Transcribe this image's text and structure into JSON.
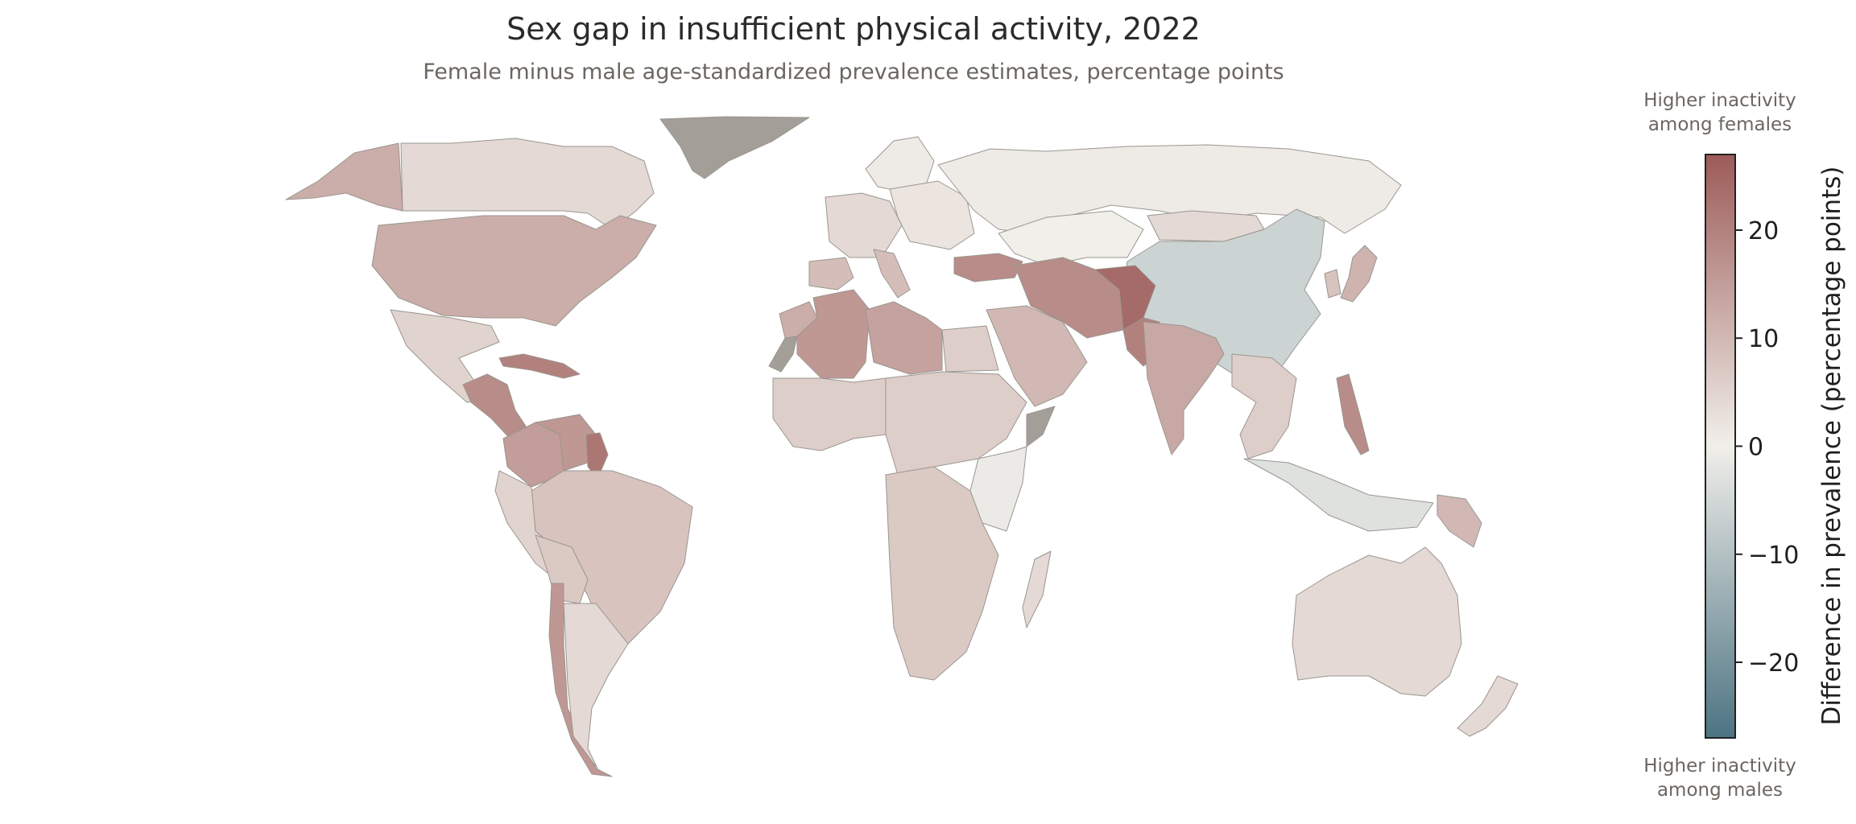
{
  "title": "Sex gap in insufficient physical activity, 2022",
  "subtitle": "Female minus male age-standardized prevalence estimates, percentage points",
  "colorbar": {
    "label": "Difference in prevalence (percentage points)",
    "min": -27,
    "max": 27,
    "ticks": [
      20,
      10,
      0,
      -10,
      -20
    ],
    "tick_labels": [
      "20",
      "10",
      "0",
      "−10",
      "−20"
    ],
    "top_caption": [
      "Higher inactivity",
      "among females"
    ],
    "bottom_caption": [
      "Higher inactivity",
      "among males"
    ],
    "colors": {
      "high": "#9c5b58",
      "zero": "#f1efea",
      "low": "#4c7382",
      "no_data": "#a39f98"
    }
  },
  "map_data": {
    "regions": [
      {
        "name": "Alaska (USA)",
        "value": 12
      },
      {
        "name": "Canada",
        "value": 4
      },
      {
        "name": "Greenland",
        "value": null
      },
      {
        "name": "USA",
        "value": 12
      },
      {
        "name": "Mexico",
        "value": 5
      },
      {
        "name": "Central America",
        "value": 18
      },
      {
        "name": "Caribbean",
        "value": 20
      },
      {
        "name": "Colombia",
        "value": 15
      },
      {
        "name": "Venezuela",
        "value": 16
      },
      {
        "name": "Guyana",
        "value": 22
      },
      {
        "name": "Brazil",
        "value": 8
      },
      {
        "name": "Peru",
        "value": 5
      },
      {
        "name": "Bolivia",
        "value": 7
      },
      {
        "name": "Chile",
        "value": 16
      },
      {
        "name": "Argentina",
        "value": 4
      },
      {
        "name": "Western Europe",
        "value": 4
      },
      {
        "name": "Scandinavia",
        "value": 1
      },
      {
        "name": "Eastern Europe",
        "value": 2
      },
      {
        "name": "Spain",
        "value": 9
      },
      {
        "name": "Italy",
        "value": 9
      },
      {
        "name": "Turkey",
        "value": 18
      },
      {
        "name": "Russia",
        "value": 1
      },
      {
        "name": "Kazakhstan",
        "value": 0
      },
      {
        "name": "Mongolia",
        "value": 4
      },
      {
        "name": "China",
        "value": -6
      },
      {
        "name": "Japan",
        "value": 11
      },
      {
        "name": "Korea",
        "value": 8
      },
      {
        "name": "Western Sahara",
        "value": null
      },
      {
        "name": "Morocco",
        "value": 12
      },
      {
        "name": "Algeria",
        "value": 16
      },
      {
        "name": "Libya",
        "value": 14
      },
      {
        "name": "Egypt",
        "value": 6
      },
      {
        "name": "West Africa",
        "value": 6
      },
      {
        "name": "Central Africa",
        "value": 6
      },
      {
        "name": "Somalia",
        "value": null
      },
      {
        "name": "East Africa",
        "value": -1
      },
      {
        "name": "Southern Africa",
        "value": 7
      },
      {
        "name": "Madagascar",
        "value": 4
      },
      {
        "name": "Saudi Arabia",
        "value": 10
      },
      {
        "name": "Iran",
        "value": 18
      },
      {
        "name": "Afghanistan",
        "value": 24
      },
      {
        "name": "Pakistan",
        "value": 20
      },
      {
        "name": "India",
        "value": 13
      },
      {
        "name": "Southeast Asia",
        "value": 6
      },
      {
        "name": "Philippines",
        "value": 18
      },
      {
        "name": "Indonesia",
        "value": -3
      },
      {
        "name": "Papua New Guinea",
        "value": 10
      },
      {
        "name": "Australia",
        "value": 4
      },
      {
        "name": "New Zealand",
        "value": 4
      }
    ]
  }
}
